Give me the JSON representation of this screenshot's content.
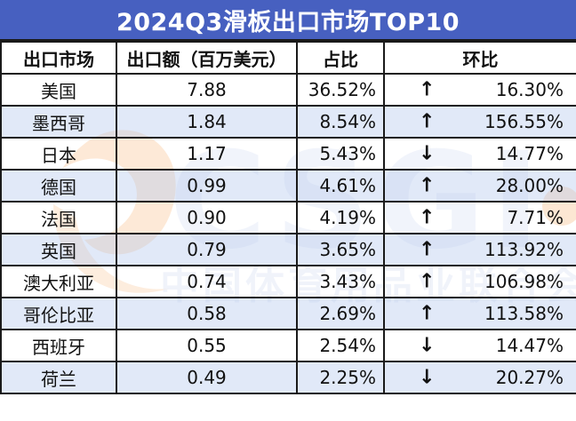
{
  "title": "2024Q3滑板出口市场TOP10",
  "headers": [
    "出口市场",
    "出口额（百万美元）",
    "占比",
    "环比"
  ],
  "rows": [
    {
      "market": "美国",
      "value": "7.88",
      "share": "36.52%",
      "dir": "up",
      "change": "16.30%"
    },
    {
      "market": "墨西哥",
      "value": "1.84",
      "share": "8.54%",
      "dir": "up",
      "change": "156.55%"
    },
    {
      "market": "日本",
      "value": "1.17",
      "share": "5.43%",
      "dir": "down",
      "change": "14.77%"
    },
    {
      "market": "德国",
      "value": "0.99",
      "share": "4.61%",
      "dir": "up",
      "change": "28.00%"
    },
    {
      "market": "法国",
      "value": "0.90",
      "share": "4.19%",
      "dir": "up",
      "change": "7.71%"
    },
    {
      "market": "英国",
      "value": "0.79",
      "share": "3.65%",
      "dir": "up",
      "change": "113.92%"
    },
    {
      "market": "澳大利亚",
      "value": "0.74",
      "share": "3.43%",
      "dir": "up",
      "change": "106.98%"
    },
    {
      "market": "哥伦比亚",
      "value": "0.58",
      "share": "2.69%",
      "dir": "up",
      "change": "113.58%"
    },
    {
      "market": "西班牙",
      "value": "0.55",
      "share": "2.54%",
      "dir": "down",
      "change": "14.47%"
    },
    {
      "market": "荷兰",
      "value": "0.49",
      "share": "2.25%",
      "dir": "down",
      "change": "20.27%"
    }
  ],
  "watermark": {
    "logo": "CSGI",
    "org": "中国体育用品业联合会"
  },
  "colors": {
    "title_bg": "#4760c0",
    "row_alt": "#d6e0f5",
    "logo": "#f5a75e",
    "mark": "#c9d5ee"
  }
}
